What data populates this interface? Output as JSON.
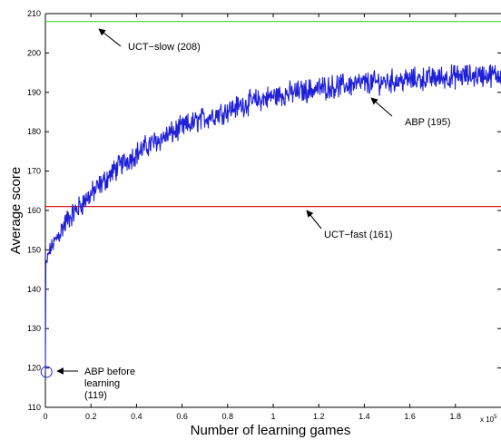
{
  "chart_data": {
    "type": "line",
    "title": "",
    "xlabel": "Number of learning games",
    "ylabel": "Average score",
    "x_multiplier_label": "x 10",
    "x_multiplier_exp": "5",
    "xlim": [
      0,
      2.0
    ],
    "ylim": [
      110,
      210
    ],
    "x_ticks": [
      "0",
      "0.2",
      "0.4",
      "0.6",
      "0.8",
      "1",
      "1.2",
      "1.4",
      "1.6",
      "1.8"
    ],
    "y_ticks": [
      "110",
      "120",
      "130",
      "140",
      "150",
      "160",
      "170",
      "180",
      "190",
      "200",
      "210"
    ],
    "grid": false,
    "series": [
      {
        "name": "ABP",
        "color": "#1f1fd9",
        "x": [
          0,
          0.005,
          0.01,
          0.02,
          0.04,
          0.06,
          0.08,
          0.1,
          0.12,
          0.15,
          0.18,
          0.2,
          0.25,
          0.3,
          0.35,
          0.4,
          0.45,
          0.5,
          0.6,
          0.7,
          0.8,
          0.9,
          1.0,
          1.1,
          1.2,
          1.3,
          1.4,
          1.5,
          1.6,
          1.7,
          1.8,
          1.9,
          2.0
        ],
        "y": [
          119,
          146,
          148,
          150,
          152,
          154,
          156,
          158,
          159,
          161,
          163,
          164,
          167,
          170,
          172.5,
          174.5,
          176.5,
          178,
          181,
          183.5,
          185.5,
          187.5,
          189,
          190,
          191,
          191.7,
          192.3,
          192.8,
          193.2,
          193.6,
          194,
          194.3,
          194.5
        ]
      },
      {
        "name": "UCT-slow",
        "color": "#3fd62a",
        "value": 208
      },
      {
        "name": "UCT-fast",
        "color": "#e01a1a",
        "value": 161
      }
    ],
    "annotations": [
      {
        "id": "uct-slow",
        "text": "UCT−slow (208)"
      },
      {
        "id": "abp",
        "text": "ABP (195)"
      },
      {
        "id": "uct-fast",
        "text": "UCT−fast (161)"
      },
      {
        "id": "abp-before",
        "lines": [
          "ABP before",
          "learning",
          "(119)"
        ]
      }
    ]
  }
}
